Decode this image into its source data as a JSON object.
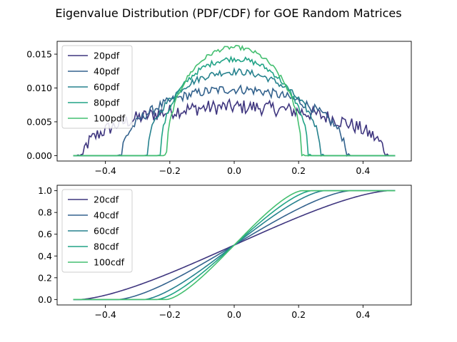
{
  "figure": {
    "title": "Eigenvalue Distribution (PDF/CDF) for GOE Random Matrices"
  },
  "chart_data": [
    {
      "type": "line",
      "name": "pdf",
      "xlim": [
        -0.55,
        0.55
      ],
      "ylim": [
        -0.0008,
        0.0169
      ],
      "xticks": [
        -0.4,
        -0.2,
        0.0,
        0.2,
        0.4
      ],
      "xtick_labels": [
        "−0.4",
        "−0.2",
        "0.0",
        "0.2",
        "0.4"
      ],
      "yticks": [
        0.0,
        0.005,
        0.01,
        0.015
      ],
      "ytick_labels": [
        "0.000",
        "0.005",
        "0.010",
        "0.015"
      ],
      "legend_position": "upper left",
      "x_range": [
        -0.5,
        0.5
      ],
      "series": [
        {
          "name": "20pdf",
          "color": "#3f367f",
          "edge": 0.47,
          "peak": 0.0072,
          "noise": 0.0011
        },
        {
          "name": "40pdf",
          "color": "#33628d",
          "edge": 0.35,
          "peak": 0.0098,
          "noise": 0.0007
        },
        {
          "name": "60pdf",
          "color": "#26828e",
          "edge": 0.27,
          "peak": 0.0124,
          "noise": 0.0005
        },
        {
          "name": "80pdf",
          "color": "#20a386",
          "edge": 0.23,
          "peak": 0.0143,
          "noise": 0.0004
        },
        {
          "name": "100pdf",
          "color": "#44bf70",
          "edge": 0.21,
          "peak": 0.016,
          "noise": 0.0003
        }
      ]
    },
    {
      "type": "line",
      "name": "cdf",
      "xlim": [
        -0.55,
        0.55
      ],
      "ylim": [
        -0.05,
        1.05
      ],
      "xticks": [
        -0.4,
        -0.2,
        0.0,
        0.2,
        0.4
      ],
      "xtick_labels": [
        "−0.4",
        "−0.2",
        "0.0",
        "0.2",
        "0.4"
      ],
      "yticks": [
        0.0,
        0.2,
        0.4,
        0.6,
        0.8,
        1.0
      ],
      "ytick_labels": [
        "0.0",
        "0.2",
        "0.4",
        "0.6",
        "0.8",
        "1.0"
      ],
      "legend_position": "upper left",
      "x_range": [
        -0.5,
        0.5
      ],
      "series": [
        {
          "name": "20cdf",
          "color": "#3f367f",
          "edge": 0.48
        },
        {
          "name": "40cdf",
          "color": "#33628d",
          "edge": 0.36
        },
        {
          "name": "60cdf",
          "color": "#26828e",
          "edge": 0.28
        },
        {
          "name": "80cdf",
          "color": "#20a386",
          "edge": 0.24
        },
        {
          "name": "100cdf",
          "color": "#44bf70",
          "edge": 0.21
        }
      ]
    }
  ]
}
